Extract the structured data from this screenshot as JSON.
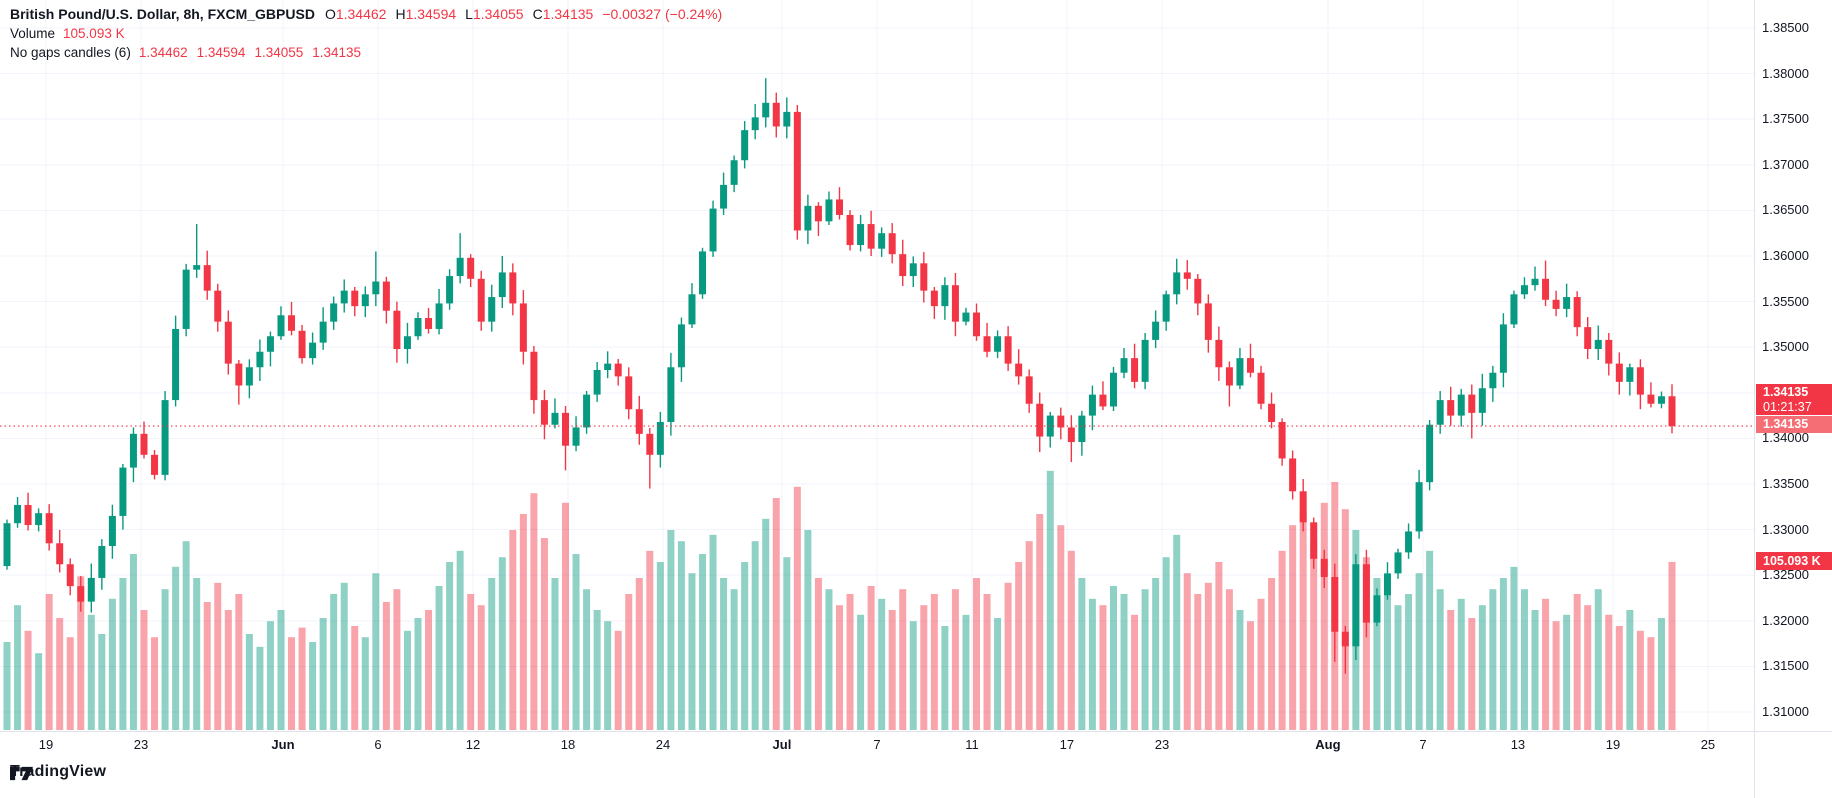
{
  "legend": {
    "title": "British Pound/U.S. Dollar, 8h, FXCM_GBPUSD",
    "ohlc": {
      "o_label": "O",
      "o": "1.34462",
      "h_label": "H",
      "h": "1.34594",
      "l_label": "L",
      "l": "1.34055",
      "c_label": "C",
      "c": "1.34135",
      "change": "−0.00327 (−0.24%)"
    },
    "volume_label": "Volume",
    "volume_value": "105.093 K",
    "indicator_label": "No gaps candles (6)",
    "indicator_values": [
      "1.34462",
      "1.34594",
      "1.34055",
      "1.34135"
    ]
  },
  "price_axis": {
    "labels": [
      "1.38500",
      "1.38000",
      "1.37500",
      "1.37000",
      "1.36500",
      "1.36000",
      "1.35500",
      "1.35000",
      "1.34000",
      "1.33500",
      "1.33000",
      "1.32500",
      "1.32000",
      "1.31500",
      "1.31000"
    ],
    "last_price": "1.34135",
    "countdown": "01:21:37",
    "line_price": "1.34135",
    "volume_badge": "105.093 K"
  },
  "branding": {
    "logo_text": "TradingView"
  },
  "colors": {
    "up": "#089981",
    "down": "#f23645",
    "vol_up": "rgba(8,153,129,0.45)",
    "vol_down": "rgba(242,54,69,0.45)",
    "grid": "#f0f3fa",
    "axis_border": "#e0e3eb",
    "axis_text": "#131722",
    "badge": "#f23645",
    "badge_light": "#f56e76",
    "price_line": "#f23645"
  },
  "chart_data": {
    "type": "candlestick",
    "symbol": "FXCM_GBPUSD",
    "title": "British Pound/U.S. Dollar",
    "timeframe": "8h",
    "grid_step": 0.005,
    "visible_price_range": [
      1.30793,
      1.38807
    ],
    "last_price_line": 1.34135,
    "first_open": 1.326,
    "closes": [
      1.3307,
      1.3327,
      1.3305,
      1.3318,
      1.3285,
      1.3262,
      1.3238,
      1.3221,
      1.3247,
      1.3282,
      1.3315,
      1.3368,
      1.3405,
      1.3382,
      1.336,
      1.3442,
      1.352,
      1.3585,
      1.359,
      1.3562,
      1.3528,
      1.3482,
      1.3458,
      1.3478,
      1.3495,
      1.3512,
      1.3535,
      1.3518,
      1.3488,
      1.3505,
      1.3528,
      1.3548,
      1.3562,
      1.3545,
      1.3558,
      1.3572,
      1.354,
      1.3498,
      1.3512,
      1.3532,
      1.352,
      1.3548,
      1.3578,
      1.3598,
      1.3575,
      1.3528,
      1.3555,
      1.3582,
      1.3548,
      1.3495,
      1.3442,
      1.3415,
      1.3428,
      1.3392,
      1.3412,
      1.3448,
      1.3475,
      1.3482,
      1.3468,
      1.3432,
      1.3405,
      1.3382,
      1.3418,
      1.3478,
      1.3525,
      1.3558,
      1.3605,
      1.3652,
      1.3678,
      1.3705,
      1.3738,
      1.3752,
      1.3768,
      1.3742,
      1.3758,
      1.3628,
      1.3655,
      1.3638,
      1.3662,
      1.3645,
      1.3612,
      1.3635,
      1.3608,
      1.3625,
      1.3602,
      1.3578,
      1.3592,
      1.3562,
      1.3545,
      1.3568,
      1.3528,
      1.3538,
      1.3512,
      1.3495,
      1.3512,
      1.3482,
      1.3468,
      1.3438,
      1.3402,
      1.3425,
      1.3412,
      1.3396,
      1.3425,
      1.3448,
      1.3435,
      1.3472,
      1.3488,
      1.3462,
      1.3508,
      1.3528,
      1.3558,
      1.3582,
      1.3575,
      1.3548,
      1.3508,
      1.3478,
      1.3458,
      1.3488,
      1.3472,
      1.3438,
      1.3418,
      1.3378,
      1.3342,
      1.3308,
      1.3268,
      1.3248,
      1.3188,
      1.3172,
      1.3262,
      1.3198,
      1.3228,
      1.3252,
      1.3275,
      1.3298,
      1.3352,
      1.3415,
      1.3442,
      1.3425,
      1.3448,
      1.3428,
      1.3455,
      1.3472,
      1.3525,
      1.3558,
      1.3568,
      1.3575,
      1.3552,
      1.3542,
      1.3555,
      1.3522,
      1.3498,
      1.3508,
      1.3482,
      1.3462,
      1.3478,
      1.3448,
      1.3438,
      1.34462,
      1.34135
    ],
    "wick_overrides": {
      "7": {
        "l": 1.321
      },
      "12": {
        "h": 1.3412
      },
      "18": {
        "h": 1.3635
      },
      "22": {
        "l": 1.3437
      },
      "35": {
        "h": 1.3605
      },
      "43": {
        "h": 1.3625
      },
      "47": {
        "h": 1.36
      },
      "53": {
        "l": 1.3365
      },
      "61": {
        "l": 1.3345
      },
      "72": {
        "h": 1.3795
      },
      "75": {
        "l": 1.3618
      },
      "98": {
        "l": 1.3385
      },
      "101": {
        "l": 1.3374
      },
      "111": {
        "h": 1.3597
      },
      "116": {
        "l": 1.3435
      },
      "126": {
        "l": 1.3155
      },
      "127": {
        "l": 1.3142
      },
      "139": {
        "l": 1.34
      },
      "146": {
        "h": 1.3595
      },
      "158": {
        "h": 1.34594,
        "l": 1.34055
      }
    },
    "volumes_k": [
      55,
      78,
      62,
      48,
      85,
      70,
      58,
      96,
      72,
      60,
      82,
      95,
      110,
      75,
      58,
      88,
      102,
      118,
      95,
      80,
      92,
      75,
      85,
      60,
      52,
      68,
      75,
      58,
      64,
      55,
      70,
      85,
      92,
      65,
      58,
      98,
      80,
      88,
      62,
      70,
      75,
      90,
      105,
      112,
      85,
      78,
      95,
      108,
      125,
      135,
      148,
      120,
      95,
      142,
      110,
      88,
      75,
      68,
      62,
      85,
      95,
      112,
      105,
      125,
      118,
      98,
      110,
      122,
      95,
      88,
      105,
      118,
      132,
      145,
      108,
      152,
      125,
      95,
      88,
      78,
      85,
      72,
      90,
      82,
      75,
      88,
      68,
      78,
      85,
      65,
      88,
      72,
      95,
      85,
      70,
      92,
      105,
      118,
      135,
      162,
      128,
      112,
      95,
      82,
      78,
      90,
      85,
      72,
      88,
      95,
      108,
      122,
      98,
      85,
      92,
      105,
      88,
      75,
      68,
      82,
      95,
      112,
      128,
      135,
      118,
      142,
      155,
      138,
      125,
      108,
      95,
      88,
      78,
      85,
      98,
      112,
      88,
      75,
      82,
      70,
      78,
      88,
      95,
      102,
      88,
      75,
      82,
      68,
      72,
      85,
      78,
      88,
      72,
      65,
      75,
      62,
      58,
      70,
      105.093
    ],
    "last_bar": {
      "open": 1.34462,
      "high": 1.34594,
      "low": 1.34055,
      "close": 1.34135,
      "change": -0.00327,
      "change_pct": -0.24,
      "volume_k": 105.093
    },
    "time_ticks": [
      {
        "label": "19",
        "i": 3.7
      },
      {
        "label": "23",
        "i": 12.72
      },
      {
        "label": "Jun",
        "i": 26.19,
        "month": true
      },
      {
        "label": "6",
        "i": 35.21
      },
      {
        "label": "12",
        "i": 44.22
      },
      {
        "label": "18",
        "i": 53.24
      },
      {
        "label": "24",
        "i": 62.25
      },
      {
        "label": "Jul",
        "i": 73.54,
        "month": true
      },
      {
        "label": "7",
        "i": 82.56
      },
      {
        "label": "11",
        "i": 91.57
      },
      {
        "label": "17",
        "i": 100.58
      },
      {
        "label": "23",
        "i": 109.6
      },
      {
        "label": "Aug",
        "i": 125.35,
        "month": true
      },
      {
        "label": "7",
        "i": 134.37
      },
      {
        "label": "13",
        "i": 143.38
      },
      {
        "label": "19",
        "i": 152.4
      },
      {
        "label": "25",
        "i": 161.41
      }
    ]
  }
}
